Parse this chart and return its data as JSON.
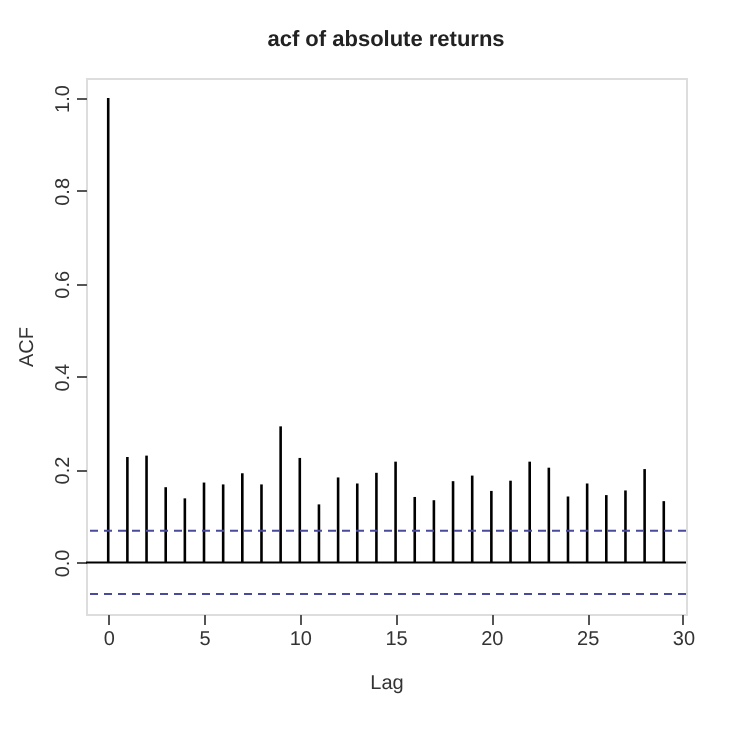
{
  "chart_data": {
    "type": "bar",
    "title": "acf of absolute returns",
    "xlabel": "Lag",
    "ylabel": "ACF",
    "x": [
      0,
      1,
      2,
      3,
      4,
      5,
      6,
      7,
      8,
      9,
      10,
      11,
      12,
      13,
      14,
      15,
      16,
      17,
      18,
      19,
      20,
      21,
      22,
      23,
      24,
      25,
      26,
      27,
      28,
      29
    ],
    "values": [
      1.0,
      0.227,
      0.23,
      0.162,
      0.138,
      0.172,
      0.168,
      0.192,
      0.168,
      0.293,
      0.225,
      0.125,
      0.183,
      0.17,
      0.193,
      0.217,
      0.141,
      0.134,
      0.175,
      0.187,
      0.154,
      0.176,
      0.217,
      0.204,
      0.142,
      0.17,
      0.145,
      0.155,
      0.201,
      0.132
    ],
    "color": "#000000",
    "xlim": [
      -1.16,
      30.16
    ],
    "xticks": [
      0,
      5,
      10,
      15,
      20,
      25,
      30
    ],
    "ylim": [
      -0.111,
      1.043
    ],
    "yticks": [
      {
        "value": 0,
        "label": "0.0"
      },
      0.2,
      0.4,
      0.6,
      0.8,
      {
        "value": 1,
        "label": "1.0"
      }
    ],
    "ref_lines": [
      {
        "axis": "y",
        "value": 0,
        "color": "#000000",
        "line_style": "solid"
      },
      {
        "axis": "y",
        "value": 0.068,
        "color": "#4a4a9a",
        "line_style": "dashed"
      },
      {
        "axis": "y",
        "value": -0.068,
        "color": "#4a4a9a",
        "line_style": "dashed"
      }
    ],
    "grid": false
  }
}
